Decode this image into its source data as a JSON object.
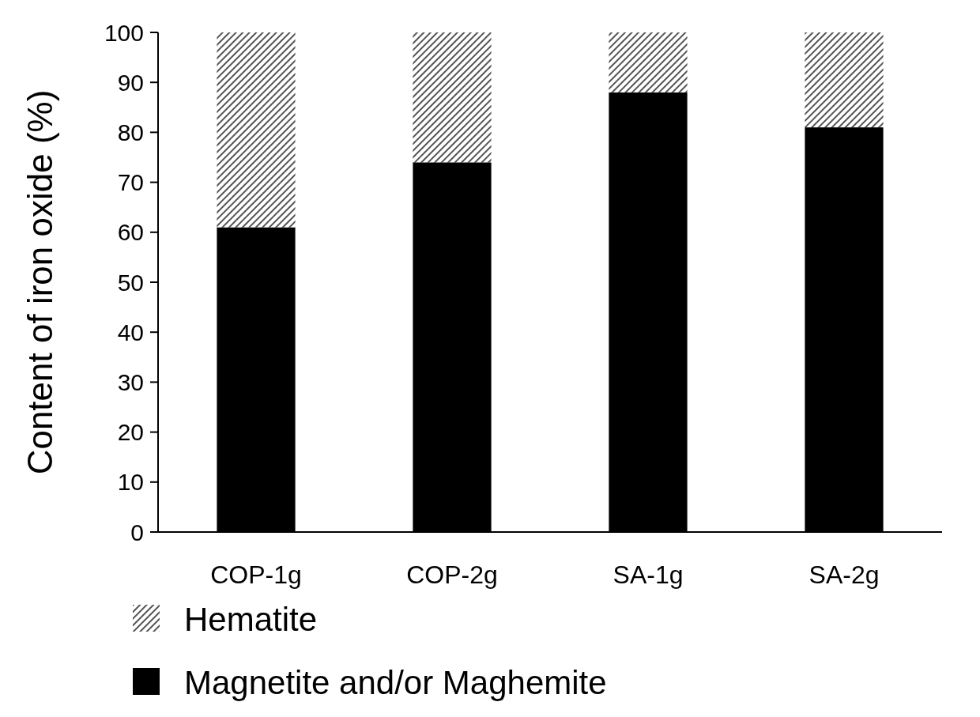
{
  "chart_data": {
    "type": "bar",
    "stacked": true,
    "ylabel": "Content of iron oxide (%)",
    "categories": [
      "COP-1g",
      "COP-2g",
      "SA-1g",
      "SA-2g"
    ],
    "series": [
      {
        "name": "Magnetite and/or Maghemite",
        "color": "#000000",
        "values": [
          61,
          74,
          88,
          81
        ]
      },
      {
        "name": "Hematite",
        "color": "#555555",
        "values": [
          39,
          26,
          12,
          19
        ]
      }
    ],
    "ylim": [
      0,
      100
    ],
    "yticks": [
      0,
      10,
      20,
      30,
      40,
      50,
      60,
      70,
      80,
      90,
      100
    ],
    "grid": false,
    "legend": "bottom left"
  }
}
